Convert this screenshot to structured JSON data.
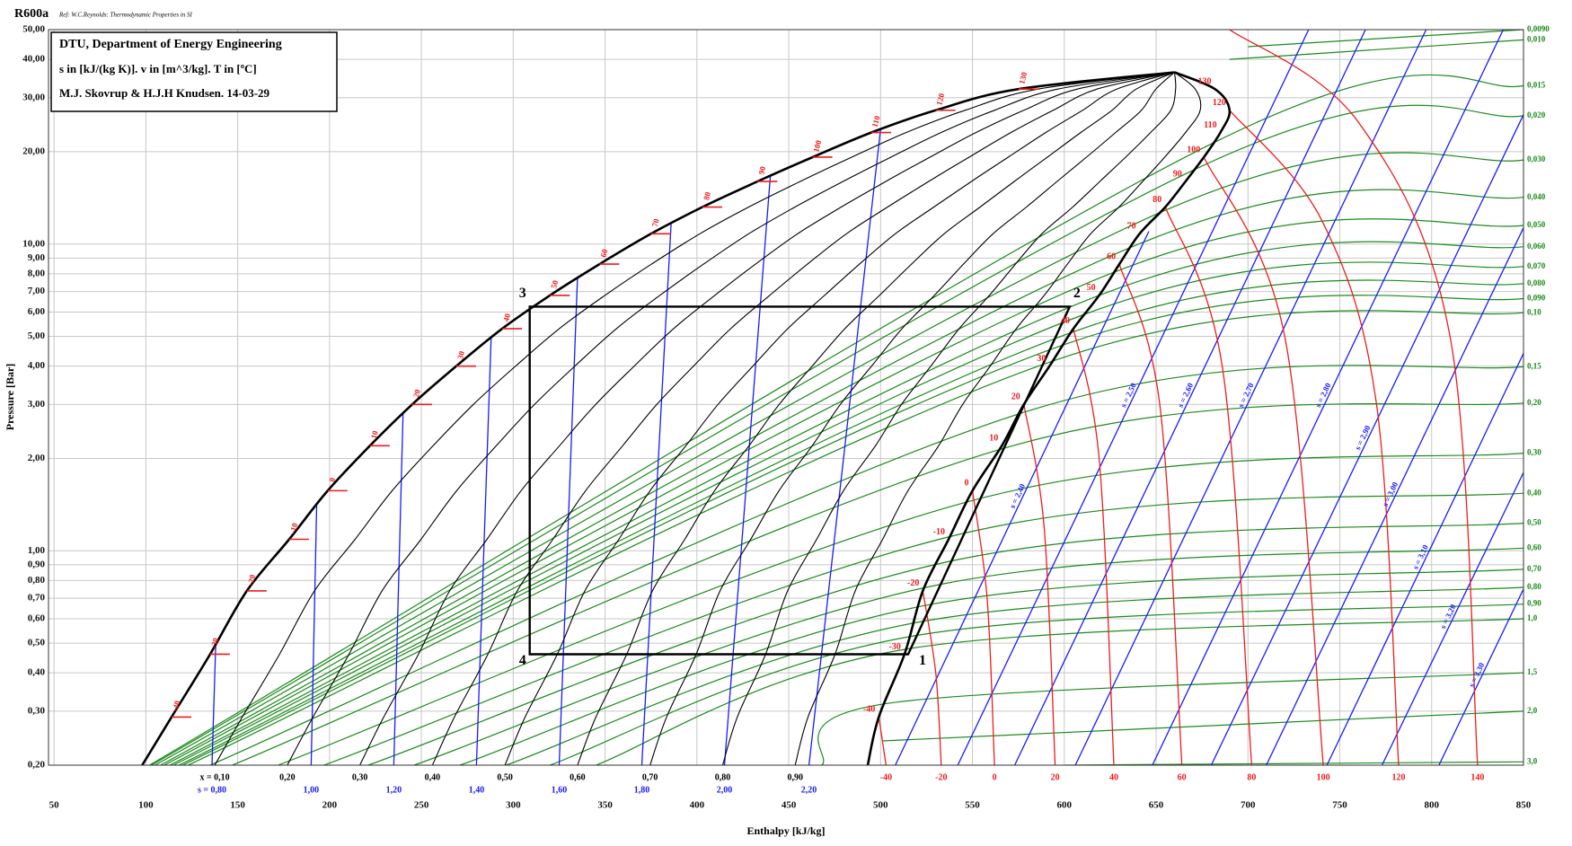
{
  "chart_data": {
    "type": "line",
    "title": "R600a",
    "subtitle": "Ref: W.C.Reynolds: Thermodynamic Properties in SI",
    "info_box": [
      "DTU, Department of Energy Engineering",
      "s in [kJ/(kg K)]. v in [m^3/kg]. T in [ºC]",
      "M.J. Skovrup & H.J.H Knudsen. 14-03-29"
    ],
    "x_label": "Enthalpy [kJ/kg]",
    "y_label": "Pressure [Bar]",
    "log_y": true,
    "grid": true,
    "xlim": [
      47,
      850
    ],
    "ylim": [
      0.2,
      50
    ],
    "xticks": [
      50,
      100,
      150,
      200,
      250,
      300,
      350,
      400,
      450,
      500,
      550,
      600,
      650,
      700,
      750,
      800,
      850
    ],
    "yticks": [
      {
        "value": 0.2,
        "label": "0,20"
      },
      {
        "value": 0.3,
        "label": "0,30"
      },
      {
        "value": 0.4,
        "label": "0,40"
      },
      {
        "value": 0.5,
        "label": "0,50"
      },
      {
        "value": 0.6,
        "label": "0,60"
      },
      {
        "value": 0.7,
        "label": "0,70"
      },
      {
        "value": 0.8,
        "label": "0,80"
      },
      {
        "value": 0.9,
        "label": "0,90"
      },
      {
        "value": 1,
        "label": "1,00"
      },
      {
        "value": 2,
        "label": "2,00"
      },
      {
        "value": 3,
        "label": "3,00"
      },
      {
        "value": 4,
        "label": "4,00"
      },
      {
        "value": 5,
        "label": "5,00"
      },
      {
        "value": 6,
        "label": "6,00"
      },
      {
        "value": 7,
        "label": "7,00"
      },
      {
        "value": 8,
        "label": "8,00"
      },
      {
        "value": 9,
        "label": "9,00"
      },
      {
        "value": 10,
        "label": "10,00"
      },
      {
        "value": 20,
        "label": "20,00"
      },
      {
        "value": 30,
        "label": "30,00"
      },
      {
        "value": 40,
        "label": "40,00"
      },
      {
        "value": 50,
        "label": "50,00"
      }
    ],
    "saturation": {
      "color": "#000000",
      "p": [
        0.2,
        0.287,
        0.46,
        0.74,
        1.09,
        1.57,
        2.2,
        3.0,
        4.0,
        5.3,
        6.8,
        8.6,
        10.8,
        13.2,
        16.0,
        19.2,
        23.1,
        27.3,
        32.0
      ],
      "T": [
        null,
        -40,
        -30,
        -20,
        -10,
        0,
        10,
        20,
        30,
        40,
        50,
        60,
        70,
        80,
        90,
        100,
        110,
        120,
        130
      ],
      "h_liquid": [
        98,
        114,
        135,
        155,
        178,
        199,
        222,
        245,
        269,
        294,
        320,
        347,
        375,
        403,
        433,
        463,
        495,
        530,
        575
      ],
      "h_vapor": [
        493,
        499,
        513,
        523,
        537,
        550,
        566,
        578,
        592,
        605,
        619,
        630,
        641,
        655,
        666,
        676,
        685,
        690,
        682
      ],
      "critical": {
        "h": 660,
        "p": 36.3
      }
    },
    "quality": {
      "color": "#000000",
      "values": [
        {
          "value": 0.1,
          "label": "x = 0,10"
        },
        {
          "value": 0.2,
          "label": "0,20"
        },
        {
          "value": 0.3,
          "label": "0,30"
        },
        {
          "value": 0.4,
          "label": "0,40"
        },
        {
          "value": 0.5,
          "label": "0,50"
        },
        {
          "value": 0.6,
          "label": "0,60"
        },
        {
          "value": 0.7,
          "label": "0,70"
        },
        {
          "value": 0.8,
          "label": "0,80"
        },
        {
          "value": 0.9,
          "label": "0,90"
        }
      ]
    },
    "isotherms": {
      "color": "#ee1c1c",
      "lines": [
        {
          "T": -40,
          "h": [
            499,
            503
          ],
          "p": [
            0.287,
            0.2
          ]
        },
        {
          "T": -20,
          "h": [
            523,
            530,
            533
          ],
          "p": [
            0.74,
            0.4,
            0.2
          ]
        },
        {
          "T": 0,
          "h": [
            550,
            558,
            562
          ],
          "p": [
            1.57,
            0.7,
            0.2
          ]
        },
        {
          "T": 20,
          "h": [
            578,
            589,
            595
          ],
          "p": [
            3.0,
            1.2,
            0.2
          ]
        },
        {
          "T": 40,
          "h": [
            605,
            619,
            627
          ],
          "p": [
            5.3,
            2.0,
            0.2
          ]
        },
        {
          "T": 60,
          "h": [
            630,
            652,
            664
          ],
          "p": [
            8.6,
            3.0,
            0.2
          ]
        },
        {
          "T": 80,
          "h": [
            655,
            686,
            702
          ],
          "p": [
            13.2,
            4.0,
            0.2
          ]
        },
        {
          "T": 100,
          "h": [
            676,
            720,
            741
          ],
          "p": [
            19.2,
            5.0,
            0.2
          ]
        },
        {
          "T": 120,
          "h": [
            690,
            740,
            770,
            782
          ],
          "p": [
            27.3,
            12,
            3,
            0.2
          ]
        },
        {
          "T": 140,
          "h": [
            690,
            760,
            810,
            825
          ],
          "p": [
            50,
            25,
            5,
            0.2
          ]
        }
      ]
    },
    "isentropes": {
      "color": "#1a1aff",
      "lines": [
        {
          "s": {
            "value": 0.8,
            "label": "s = 0,80"
          },
          "h": [
            136,
            138
          ],
          "p": [
            0.2,
            0.49
          ]
        },
        {
          "s": {
            "value": 1.0,
            "label": "1,00"
          },
          "h": [
            190,
            193
          ],
          "p": [
            0.2,
            1.4
          ]
        },
        {
          "s": {
            "value": 1.2,
            "label": "1,20"
          },
          "h": [
            235,
            240
          ],
          "p": [
            0.2,
            2.8
          ]
        },
        {
          "s": {
            "value": 1.4,
            "label": "1,40"
          },
          "h": [
            280,
            288
          ],
          "p": [
            0.2,
            5.0
          ]
        },
        {
          "s": {
            "value": 1.6,
            "label": "1,60"
          },
          "h": [
            325,
            335
          ],
          "p": [
            0.2,
            7.8
          ]
        },
        {
          "s": {
            "value": 1.8,
            "label": "1,80"
          },
          "h": [
            370,
            386
          ],
          "p": [
            0.2,
            11.8
          ]
        },
        {
          "s": {
            "value": 2.0,
            "label": "2,00"
          },
          "h": [
            415,
            440
          ],
          "p": [
            0.2,
            16.7
          ]
        },
        {
          "s": {
            "value": 2.2,
            "label": "2,20"
          },
          "h": [
            461,
            500
          ],
          "p": [
            0.2,
            23.7
          ]
        },
        {
          "s": {
            "value": 2.4,
            "label": "s = 2,40"
          },
          "h": [
            508,
            646
          ],
          "p": [
            0.2,
            11
          ]
        },
        {
          "s": {
            "value": 2.5,
            "label": "s = 2,50"
          },
          "h": [
            542,
            733
          ],
          "p": [
            0.2,
            50
          ]
        },
        {
          "s": {
            "value": 2.6,
            "label": "s = 2,60"
          },
          "h": [
            573,
            764
          ],
          "p": [
            0.2,
            50
          ]
        },
        {
          "s": {
            "value": 2.7,
            "label": "s = 2,70"
          },
          "h": [
            606,
            797
          ],
          "p": [
            0.2,
            50
          ]
        },
        {
          "s": {
            "value": 2.8,
            "label": "s = 2,80"
          },
          "h": [
            648,
            839
          ],
          "p": [
            0.2,
            50
          ]
        },
        {
          "s": {
            "value": 2.9,
            "label": "s = 2,90"
          },
          "h": [
            680,
            850
          ],
          "p": [
            0.2,
            26.4
          ]
        },
        {
          "s": {
            "value": 3.0,
            "label": "s = 3,00"
          },
          "h": [
            710,
            850
          ],
          "p": [
            0.2,
            11.3
          ]
        },
        {
          "s": {
            "value": 3.1,
            "label": "s = 3,10"
          },
          "h": [
            743,
            850
          ],
          "p": [
            0.2,
            4.4
          ]
        },
        {
          "s": {
            "value": 3.2,
            "label": "s = 3,20"
          },
          "h": [
            773,
            850
          ],
          "p": [
            0.2,
            1.8
          ]
        },
        {
          "s": {
            "value": 3.3,
            "label": "s = 3,30"
          },
          "h": [
            804,
            850
          ],
          "p": [
            0.2,
            0.75
          ]
        }
      ]
    },
    "isochores": {
      "color": "#1a8a1a",
      "lines": [
        {
          "v": {
            "value": 0.009,
            "label": "0,0090"
          },
          "h": [
            700,
            850
          ],
          "p": [
            44,
            50
          ]
        },
        {
          "v": {
            "value": 0.01,
            "label": "0,010"
          },
          "h": [
            690,
            850
          ],
          "p": [
            40,
            46.3
          ]
        },
        {
          "v": {
            "value": 0.015,
            "label": "0,015"
          },
          "h": [
            102,
            682,
            850
          ],
          "p": [
            0.2,
            21.5,
            32.8
          ]
        },
        {
          "v": {
            "value": 0.02,
            "label": "0,020"
          },
          "h": [
            103,
            671,
            850
          ],
          "p": [
            0.2,
            17.5,
            26.2
          ]
        },
        {
          "v": {
            "value": 0.03,
            "label": "0,030"
          },
          "h": [
            105,
            650,
            850
          ],
          "p": [
            0.2,
            12.5,
            18.8
          ]
        },
        {
          "v": {
            "value": 0.04,
            "label": "0,040"
          },
          "h": [
            108,
            637,
            850
          ],
          "p": [
            0.2,
            9.8,
            14.2
          ]
        },
        {
          "v": {
            "value": 0.05,
            "label": "0,050"
          },
          "h": [
            110,
            625,
            850
          ],
          "p": [
            0.2,
            8.0,
            11.5
          ]
        },
        {
          "v": {
            "value": 0.06,
            "label": "0,060"
          },
          "h": [
            113,
            619,
            850
          ],
          "p": [
            0.2,
            6.8,
            9.8
          ]
        },
        {
          "v": {
            "value": 0.07,
            "label": "0,070"
          },
          "h": [
            115,
            611,
            850
          ],
          "p": [
            0.2,
            5.9,
            8.45
          ]
        },
        {
          "v": {
            "value": 0.08,
            "label": "0,080"
          },
          "h": [
            118,
            606,
            850
          ],
          "p": [
            0.2,
            5.2,
            7.43
          ]
        },
        {
          "v": {
            "value": 0.09,
            "label": "0,090"
          },
          "h": [
            120,
            600,
            850
          ],
          "p": [
            0.2,
            4.7,
            6.64
          ]
        },
        {
          "v": {
            "value": 0.1,
            "label": "0,10"
          },
          "h": [
            123,
            596,
            850
          ],
          "p": [
            0.2,
            4.2,
            5.97
          ]
        },
        {
          "v": {
            "value": 0.15,
            "label": "0,15"
          },
          "h": [
            135,
            584,
            850
          ],
          "p": [
            0.2,
            2.9,
            3.98
          ]
        },
        {
          "v": {
            "value": 0.2,
            "label": "0,20"
          },
          "h": [
            147,
            572,
            850
          ],
          "p": [
            0.2,
            2.2,
            3.03
          ]
        },
        {
          "v": {
            "value": 0.3,
            "label": "0,30"
          },
          "h": [
            172,
            558,
            850
          ],
          "p": [
            0.2,
            1.5,
            2.08
          ]
        },
        {
          "v": {
            "value": 0.4,
            "label": "0,40"
          },
          "h": [
            197,
            548,
            850
          ],
          "p": [
            0.2,
            1.15,
            1.54
          ]
        },
        {
          "v": {
            "value": 0.5,
            "label": "0,50"
          },
          "h": [
            221,
            540,
            850
          ],
          "p": [
            0.2,
            0.93,
            1.23
          ]
        },
        {
          "v": {
            "value": 0.6,
            "label": "0,60"
          },
          "h": [
            246,
            534,
            850
          ],
          "p": [
            0.2,
            0.78,
            1.02
          ]
        },
        {
          "v": {
            "value": 0.7,
            "label": "0,70"
          },
          "h": [
            271,
            528,
            850
          ],
          "p": [
            0.2,
            0.67,
            0.87
          ]
        },
        {
          "v": {
            "value": 0.8,
            "label": "0,80"
          },
          "h": [
            296,
            524,
            850
          ],
          "p": [
            0.2,
            0.59,
            0.76
          ]
        },
        {
          "v": {
            "value": 0.9,
            "label": "0,90"
          },
          "h": [
            320,
            520,
            850
          ],
          "p": [
            0.2,
            0.53,
            0.67
          ]
        },
        {
          "v": {
            "value": 1.0,
            "label": "1,0"
          },
          "h": [
            345,
            516,
            850
          ],
          "p": [
            0.2,
            0.48,
            0.6
          ]
        },
        {
          "v": {
            "value": 1.5,
            "label": "1,5"
          },
          "h": [
            468,
            507,
            850
          ],
          "p": [
            0.2,
            0.32,
            0.4
          ]
        },
        {
          "v": {
            "value": 2.0,
            "label": "2,0"
          },
          "h": [
            501,
            850
          ],
          "p": [
            0.24,
            0.3
          ]
        },
        {
          "v": {
            "value": 3.0,
            "label": "3,0"
          },
          "h": [
            600,
            850
          ],
          "p": [
            0.2,
            0.205
          ]
        }
      ]
    },
    "cycle": {
      "color": "#000000",
      "labels": [
        "1",
        "2",
        "3",
        "4"
      ],
      "h": [
        515,
        603,
        309,
        309
      ],
      "p": [
        0.46,
        6.25,
        6.25,
        0.46
      ]
    }
  }
}
